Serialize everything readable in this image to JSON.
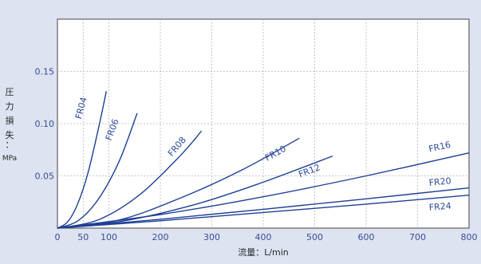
{
  "chart_data": {
    "type": "line",
    "xlabel": "流量：L/min",
    "ylabel": "圧力損失：MPa",
    "ylabel_chars": [
      "圧",
      "力",
      "損",
      "失",
      "：",
      "MPa"
    ],
    "xlim": [
      0,
      800
    ],
    "ylim": [
      0,
      0.2
    ],
    "xticks": [
      0,
      50,
      100,
      200,
      300,
      400,
      500,
      600,
      700,
      800
    ],
    "xtick_labels": [
      "0",
      "50",
      "100",
      "200",
      "300",
      "400",
      "500",
      "600",
      "700",
      "800"
    ],
    "yticks": [
      0.05,
      0.1,
      0.15
    ],
    "ytick_labels": [
      "0.05",
      "0.10",
      "0.15"
    ],
    "grid": true,
    "colors": {
      "line": "#1f3f96",
      "background": "#dde3f1",
      "plot": "#ffffff",
      "grid": "#b5b5b5",
      "label": "#2f4a9b"
    },
    "series": [
      {
        "name": "FR04",
        "x": [
          0,
          20,
          40,
          60,
          80,
          95
        ],
        "y": [
          0,
          0.006,
          0.024,
          0.054,
          0.096,
          0.131
        ]
      },
      {
        "name": "FR06",
        "x": [
          0,
          40,
          80,
          120,
          155
        ],
        "y": [
          0,
          0.007,
          0.028,
          0.064,
          0.11
        ]
      },
      {
        "name": "FR08",
        "x": [
          0,
          80,
          160,
          240,
          280
        ],
        "y": [
          0,
          0.008,
          0.032,
          0.07,
          0.093
        ]
      },
      {
        "name": "FR10",
        "x": [
          0,
          120,
          240,
          360,
          470
        ],
        "y": [
          0,
          0.0078,
          0.029,
          0.056,
          0.086
        ]
      },
      {
        "name": "FR12",
        "x": [
          0,
          130,
          270,
          400,
          535
        ],
        "y": [
          0,
          0.007,
          0.023,
          0.044,
          0.069
        ]
      },
      {
        "name": "FR16",
        "x": [
          0,
          200,
          400,
          600,
          800
        ],
        "y": [
          0,
          0.013,
          0.03,
          0.05,
          0.072
        ]
      },
      {
        "name": "FR20",
        "x": [
          0,
          200,
          400,
          600,
          800
        ],
        "y": [
          0,
          0.0085,
          0.018,
          0.028,
          0.0385
        ]
      },
      {
        "name": "FR24",
        "x": [
          0,
          200,
          400,
          600,
          800
        ],
        "y": [
          0,
          0.007,
          0.015,
          0.023,
          0.0315
        ]
      }
    ]
  }
}
